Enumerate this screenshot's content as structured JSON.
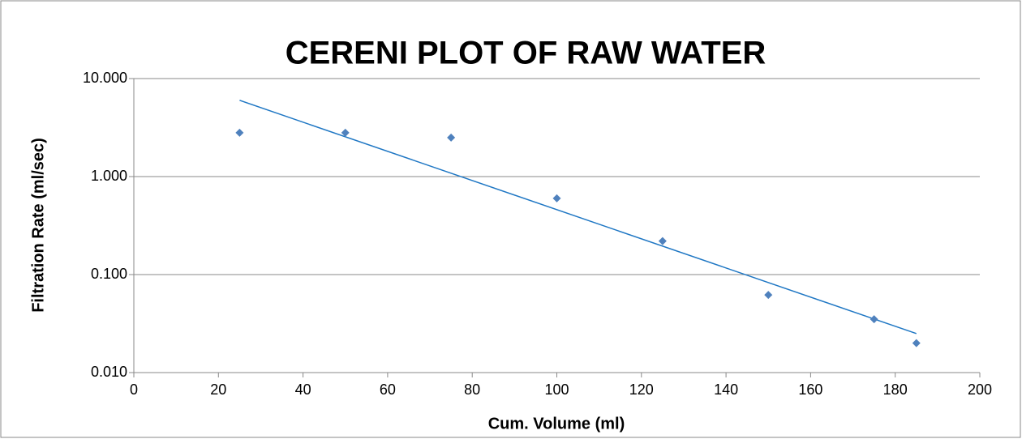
{
  "chart_data": {
    "type": "scatter",
    "title": "CERENI PLOT OF RAW WATER",
    "xlabel": "Cum. Volume (ml)",
    "ylabel": "Filtration Rate (ml/sec)",
    "x": [
      25,
      50,
      75,
      100,
      125,
      150,
      175,
      185
    ],
    "values": [
      2.8,
      2.8,
      2.5,
      0.6,
      0.22,
      0.062,
      0.035,
      0.02
    ],
    "color": "#4f81bd",
    "trendline": {
      "x": [
        25,
        185
      ],
      "values": [
        6.0,
        0.025
      ],
      "color": "#1f77c4"
    },
    "xlim": [
      0,
      200
    ],
    "xticks": [
      0,
      20,
      40,
      60,
      80,
      100,
      120,
      140,
      160,
      180,
      200
    ],
    "ylim": [
      0.01,
      10
    ],
    "ylog": true,
    "yticks": [
      {
        "value": 0.01,
        "label": "0.010"
      },
      {
        "value": 0.1,
        "label": "0.100"
      },
      {
        "value": 1,
        "label": "1.000"
      },
      {
        "value": 10,
        "label": "10.000"
      }
    ],
    "grid": true
  }
}
